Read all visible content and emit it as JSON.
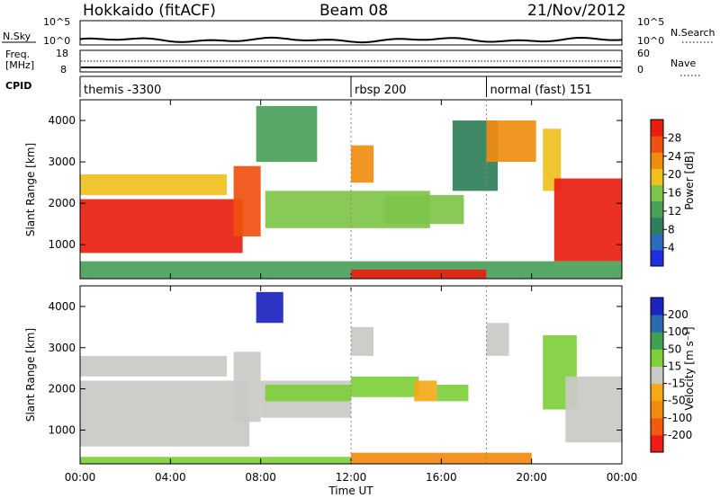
{
  "header": {
    "station": "Hokkaido (fitACF)",
    "beam": "Beam 08",
    "date": "21/Nov/2012"
  },
  "top_panels": {
    "nsky": {
      "label": "N.Sky",
      "ticks": [
        "10^5",
        "10^0"
      ],
      "right_label": "N.Search",
      "right_ticks": [
        "10^5",
        "10^0"
      ]
    },
    "freq": {
      "label_line1": "Freq.",
      "label_line2": "[MHz]",
      "ticks": [
        "18",
        "8"
      ],
      "right_label": "Nave",
      "right_ticks": [
        "60",
        "0"
      ]
    },
    "cpid": {
      "label": "CPID",
      "segments": [
        {
          "name": "themis -3300",
          "start": 0,
          "end": 12
        },
        {
          "name": "rbsp 200",
          "start": 12,
          "end": 18
        },
        {
          "name": "normal (fast) 151",
          "start": 18,
          "end": 24
        }
      ]
    }
  },
  "colors": {
    "power_scale": [
      "#1f2fe0",
      "#2c6cbf",
      "#2f7f5a",
      "#4aa05a",
      "#7ec44a",
      "#f0c020",
      "#f08c10",
      "#f05010",
      "#e81f10"
    ],
    "velocity_scale": [
      "#ee1c16",
      "#f25a10",
      "#f28a10",
      "#f5a818",
      "#c9c9c6",
      "#7fcf3c",
      "#3fa050",
      "#2a6ab0",
      "#1c24c0"
    ]
  },
  "chart_data": [
    {
      "type": "heatmap",
      "name": "Power",
      "ylabel": "Slant Range [km]",
      "colorbar_label": "Power [dB]",
      "colorbar_ticks": [
        "28",
        "24",
        "20",
        "16",
        "12",
        "8",
        "4"
      ],
      "x_range_hours": [
        0,
        24
      ],
      "y_range_km": [
        180,
        4500
      ],
      "y_ticks": [
        1000,
        2000,
        3000,
        4000
      ],
      "patches": [
        {
          "t0": 0.0,
          "t1": 7.2,
          "r0": 800,
          "r1": 2100,
          "level": 8
        },
        {
          "t0": 0.0,
          "t1": 6.5,
          "r0": 2200,
          "r1": 2700,
          "level": 5
        },
        {
          "t0": 6.8,
          "t1": 8.0,
          "r0": 1200,
          "r1": 2900,
          "level": 7
        },
        {
          "t0": 7.8,
          "t1": 10.5,
          "r0": 3000,
          "r1": 4350,
          "level": 3
        },
        {
          "t0": 8.2,
          "t1": 15.5,
          "r0": 1400,
          "r1": 2300,
          "level": 4
        },
        {
          "t0": 12.0,
          "t1": 13.0,
          "r0": 2500,
          "r1": 3400,
          "level": 6
        },
        {
          "t0": 13.5,
          "t1": 17.0,
          "r0": 1500,
          "r1": 2200,
          "level": 4
        },
        {
          "t0": 16.5,
          "t1": 18.5,
          "r0": 2300,
          "r1": 4000,
          "level": 2
        },
        {
          "t0": 18.0,
          "t1": 20.2,
          "r0": 3000,
          "r1": 4000,
          "level": 6
        },
        {
          "t0": 20.5,
          "t1": 21.3,
          "r0": 2300,
          "r1": 3800,
          "level": 5
        },
        {
          "t0": 21.0,
          "t1": 24.0,
          "r0": 600,
          "r1": 2600,
          "level": 8
        },
        {
          "t0": 0.0,
          "t1": 24.0,
          "r0": 180,
          "r1": 600,
          "level": 3
        },
        {
          "t0": 12.0,
          "t1": 18.0,
          "r0": 180,
          "r1": 400,
          "level": 8
        }
      ]
    },
    {
      "type": "heatmap",
      "name": "Velocity",
      "ylabel": "Slant Range [km]",
      "xlabel": "Time UT",
      "colorbar_label": "Velocity [m s⁻¹]",
      "colorbar_ticks": [
        "200",
        "100",
        "50",
        "15",
        "-15",
        "-50",
        "-100",
        "-200"
      ],
      "x_range_hours": [
        0,
        24
      ],
      "y_range_km": [
        180,
        4500
      ],
      "y_ticks": [
        1000,
        2000,
        3000,
        4000
      ],
      "x_ticks": [
        "00:00",
        "04:00",
        "08:00",
        "12:00",
        "16:00",
        "20:00",
        "00:00"
      ],
      "patches": [
        {
          "t0": 0.0,
          "t1": 7.5,
          "r0": 600,
          "r1": 2200,
          "level": 4
        },
        {
          "t0": 0.0,
          "t1": 6.5,
          "r0": 2300,
          "r1": 2800,
          "level": 4
        },
        {
          "t0": 6.8,
          "t1": 8.0,
          "r0": 1200,
          "r1": 2900,
          "level": 4
        },
        {
          "t0": 7.8,
          "t1": 9.0,
          "r0": 3600,
          "r1": 4350,
          "level": 8
        },
        {
          "t0": 8.0,
          "t1": 12.0,
          "r0": 1300,
          "r1": 2200,
          "level": 4
        },
        {
          "t0": 8.2,
          "t1": 12.0,
          "r0": 1700,
          "r1": 2100,
          "level": 5
        },
        {
          "t0": 12.0,
          "t1": 15.0,
          "r0": 1800,
          "r1": 2300,
          "level": 5
        },
        {
          "t0": 14.8,
          "t1": 15.8,
          "r0": 1700,
          "r1": 2200,
          "level": 3
        },
        {
          "t0": 15.8,
          "t1": 17.2,
          "r0": 1700,
          "r1": 2100,
          "level": 5
        },
        {
          "t0": 12.0,
          "t1": 13.0,
          "r0": 2800,
          "r1": 3500,
          "level": 4
        },
        {
          "t0": 18.0,
          "t1": 19.0,
          "r0": 2800,
          "r1": 3600,
          "level": 4
        },
        {
          "t0": 20.5,
          "t1": 22.0,
          "r0": 1500,
          "r1": 3300,
          "level": 5
        },
        {
          "t0": 21.5,
          "t1": 24.0,
          "r0": 700,
          "r1": 2300,
          "level": 4
        },
        {
          "t0": 12.0,
          "t1": 20.0,
          "r0": 180,
          "r1": 450,
          "level": 2
        },
        {
          "t0": 0.0,
          "t1": 12.0,
          "r0": 180,
          "r1": 350,
          "level": 5
        }
      ]
    }
  ]
}
